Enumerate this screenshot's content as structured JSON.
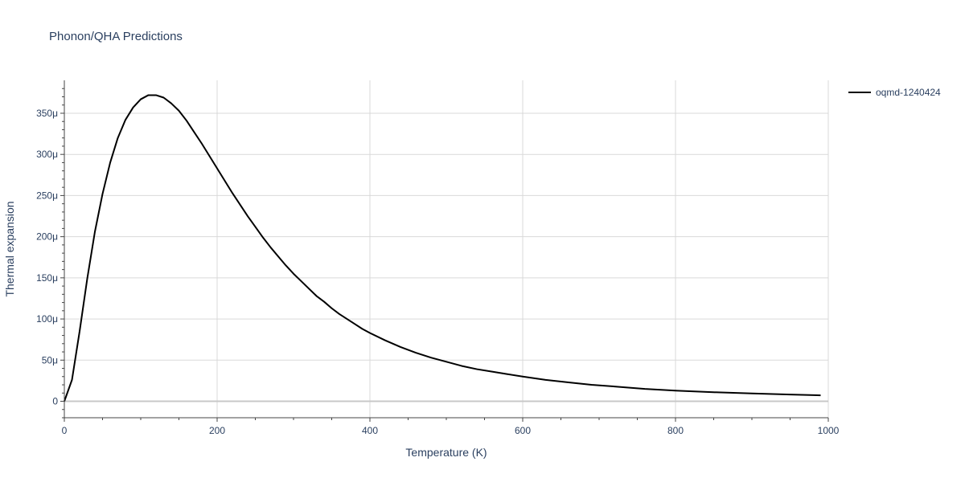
{
  "chart_data": {
    "type": "line",
    "title": "Phonon/QHA Predictions",
    "xlabel": "Temperature (K)",
    "ylabel": "Thermal expansion",
    "xlim": [
      0,
      1000
    ],
    "ylim": [
      -2e-05,
      0.00039
    ],
    "x_ticks": [
      0,
      200,
      400,
      600,
      800,
      1000
    ],
    "x_tick_labels": [
      "0",
      "200",
      "400",
      "600",
      "800",
      "1000"
    ],
    "y_ticks": [
      0,
      5e-05,
      0.0001,
      0.00015,
      0.0002,
      0.00025,
      0.0003,
      0.00035
    ],
    "y_tick_labels": [
      "0",
      "50μ",
      "100μ",
      "150μ",
      "200μ",
      "250μ",
      "300μ",
      "350μ"
    ],
    "grid": true,
    "legend_position": "top-right",
    "colors": {
      "series": "#000000",
      "grid": "#d9d9d9",
      "text": "#2a3f5f",
      "zeroline": "#c8c8c8"
    },
    "series": [
      {
        "name": "oqmd-1240424",
        "x": [
          0,
          10,
          20,
          30,
          40,
          50,
          60,
          70,
          80,
          90,
          100,
          110,
          120,
          130,
          140,
          150,
          160,
          170,
          180,
          190,
          200,
          210,
          220,
          230,
          240,
          250,
          260,
          270,
          280,
          290,
          300,
          310,
          320,
          330,
          340,
          350,
          360,
          370,
          380,
          390,
          400,
          420,
          440,
          460,
          480,
          500,
          520,
          540,
          560,
          580,
          600,
          630,
          660,
          690,
          720,
          760,
          800,
          850,
          900,
          950,
          990
        ],
        "y": [
          0,
          2.6e-05,
          8.5e-05,
          0.000149,
          0.000206,
          0.000252,
          0.00029,
          0.00032,
          0.000342,
          0.000357,
          0.000367,
          0.000372,
          0.000372,
          0.000369,
          0.000362,
          0.000353,
          0.000341,
          0.000327,
          0.000313,
          0.000298,
          0.000283,
          0.000268,
          0.000253,
          0.000239,
          0.000225,
          0.000212,
          0.000199,
          0.000187,
          0.000176,
          0.000165,
          0.000155,
          0.000146,
          0.000137,
          0.000128,
          0.000121,
          0.000113,
          0.000106,
          0.0001,
          9.4e-05,
          8.8e-05,
          8.3e-05,
          7.4e-05,
          6.6e-05,
          5.9e-05,
          5.3e-05,
          4.8e-05,
          4.3e-05,
          3.9e-05,
          3.6e-05,
          3.3e-05,
          3e-05,
          2.6e-05,
          2.3e-05,
          2e-05,
          1.8e-05,
          1.5e-05,
          1.3e-05,
          1.1e-05,
          9.5e-06,
          8.2e-06,
          7.2e-06
        ]
      }
    ]
  }
}
